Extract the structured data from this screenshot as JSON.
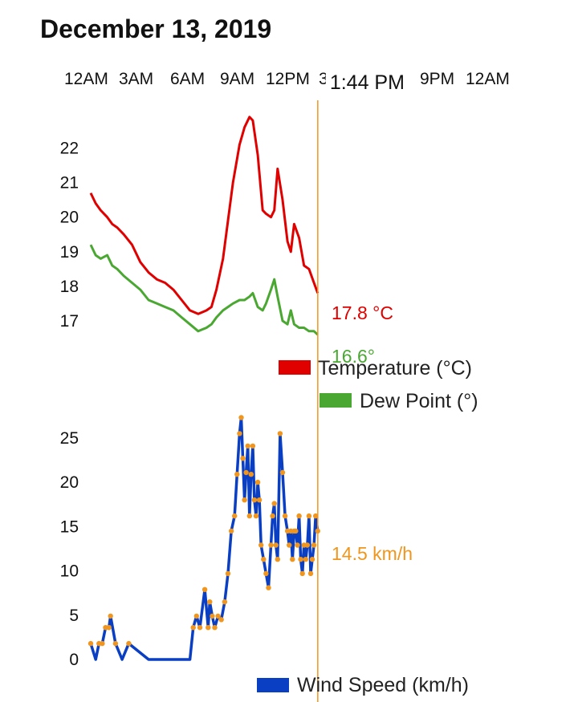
{
  "title": "December 13, 2019",
  "cursor": {
    "time_label": "1:44 PM",
    "hours": 13.73
  },
  "colors": {
    "temperature": "#e00000",
    "dew_point": "#4aa832",
    "wind": "#0a3fc4",
    "wind_points": "#f0961e",
    "cursor": "#f0961e"
  },
  "chart_data": [
    {
      "type": "line",
      "x_tick_labels": [
        "12AM",
        "3AM",
        "6AM",
        "9AM",
        "12PM",
        "3",
        "9PM",
        "12AM"
      ],
      "x_tick_hours": [
        0,
        3,
        6,
        9,
        12,
        15,
        21,
        24
      ],
      "y_ticks": [
        17,
        18,
        19,
        20,
        21,
        22
      ],
      "ylim": [
        16.3,
        23.5
      ],
      "readouts": {
        "temperature": "17.8 °C",
        "dew_point": "16.6°"
      },
      "series": [
        {
          "name": "Temperature (°C)",
          "x": [
            0,
            0.3,
            0.6,
            1,
            1.3,
            1.6,
            2,
            2.5,
            3,
            3.5,
            4,
            4.5,
            5,
            5.5,
            6,
            6.5,
            7,
            7.3,
            7.6,
            8,
            8.3,
            8.6,
            9,
            9.3,
            9.6,
            9.8,
            10.1,
            10.4,
            10.6,
            10.9,
            11.1,
            11.3,
            11.6,
            11.9,
            12.1,
            12.3,
            12.6,
            12.9,
            13.2,
            13.5,
            13.73
          ],
          "values": [
            20.7,
            20.4,
            20.2,
            20.0,
            19.8,
            19.7,
            19.5,
            19.2,
            18.7,
            18.4,
            18.2,
            18.1,
            17.9,
            17.6,
            17.3,
            17.2,
            17.3,
            17.4,
            17.9,
            18.8,
            19.9,
            21.0,
            22.1,
            22.6,
            22.9,
            22.8,
            21.8,
            20.2,
            20.1,
            20.0,
            20.2,
            21.4,
            20.5,
            19.3,
            19.0,
            19.8,
            19.4,
            18.6,
            18.5,
            18.1,
            17.8
          ]
        },
        {
          "name": "Dew Point (°)",
          "x": [
            0,
            0.3,
            0.6,
            1,
            1.3,
            1.6,
            2,
            2.5,
            3,
            3.5,
            4,
            4.5,
            5,
            5.5,
            6,
            6.5,
            7,
            7.3,
            7.6,
            8,
            8.3,
            8.6,
            9,
            9.3,
            9.6,
            9.8,
            10.1,
            10.4,
            10.6,
            10.9,
            11.1,
            11.3,
            11.6,
            11.9,
            12.1,
            12.3,
            12.6,
            12.9,
            13.2,
            13.5,
            13.73
          ],
          "values": [
            19.2,
            18.9,
            18.8,
            18.9,
            18.6,
            18.5,
            18.3,
            18.1,
            17.9,
            17.6,
            17.5,
            17.4,
            17.3,
            17.1,
            16.9,
            16.7,
            16.8,
            16.9,
            17.1,
            17.3,
            17.4,
            17.5,
            17.6,
            17.6,
            17.7,
            17.8,
            17.4,
            17.3,
            17.5,
            17.9,
            18.2,
            17.7,
            17.0,
            16.9,
            17.3,
            16.9,
            16.8,
            16.8,
            16.7,
            16.7,
            16.6
          ]
        }
      ]
    },
    {
      "type": "line",
      "x_tick_hours": [
        0,
        3,
        6,
        9,
        12,
        15,
        21,
        24
      ],
      "y_ticks": [
        0,
        5,
        10,
        15,
        20,
        25
      ],
      "ylim": [
        0,
        27.8
      ],
      "readout": "14.5 km/h",
      "series": [
        {
          "name": "Wind Speed (km/h)",
          "x": [
            0,
            0.3,
            0.5,
            0.7,
            0.9,
            1.1,
            1.2,
            1.5,
            1.9,
            2.3,
            3.5,
            6,
            6.2,
            6.4,
            6.6,
            6.9,
            7.1,
            7.2,
            7.35,
            7.5,
            7.7,
            7.9,
            8.1,
            8.3,
            8.5,
            8.7,
            8.85,
            9.0,
            9.1,
            9.2,
            9.3,
            9.4,
            9.5,
            9.6,
            9.7,
            9.8,
            9.9,
            10.0,
            10.1,
            10.2,
            10.3,
            10.45,
            10.6,
            10.75,
            10.9,
            11.0,
            11.1,
            11.2,
            11.3,
            11.45,
            11.6,
            11.75,
            11.9,
            12.0,
            12.1,
            12.2,
            12.3,
            12.4,
            12.5,
            12.6,
            12.7,
            12.8,
            12.9,
            13.0,
            13.1,
            13.2,
            13.3,
            13.4,
            13.5,
            13.6,
            13.73
          ],
          "values": [
            1.8,
            0,
            1.8,
            1.8,
            3.6,
            3.6,
            4.9,
            1.8,
            0,
            1.8,
            0,
            0,
            3.6,
            4.9,
            3.6,
            7.9,
            3.6,
            6.5,
            4.9,
            3.6,
            4.9,
            4.5,
            6.5,
            9.7,
            14.5,
            16.2,
            20.9,
            25.5,
            27.3,
            22.7,
            18,
            21.1,
            24.1,
            16.2,
            20.9,
            24.1,
            18,
            16.2,
            20,
            18,
            12.9,
            11.3,
            9.7,
            8.1,
            12.9,
            16.2,
            17.6,
            12.9,
            11.3,
            25.5,
            21.1,
            16.2,
            14.5,
            12.9,
            14.5,
            11.3,
            14.5,
            14.5,
            12.9,
            16.2,
            11.3,
            9.7,
            12.9,
            11.3,
            12.9,
            16.2,
            9.7,
            11.3,
            12.9,
            16.2,
            14.5
          ]
        }
      ]
    }
  ]
}
